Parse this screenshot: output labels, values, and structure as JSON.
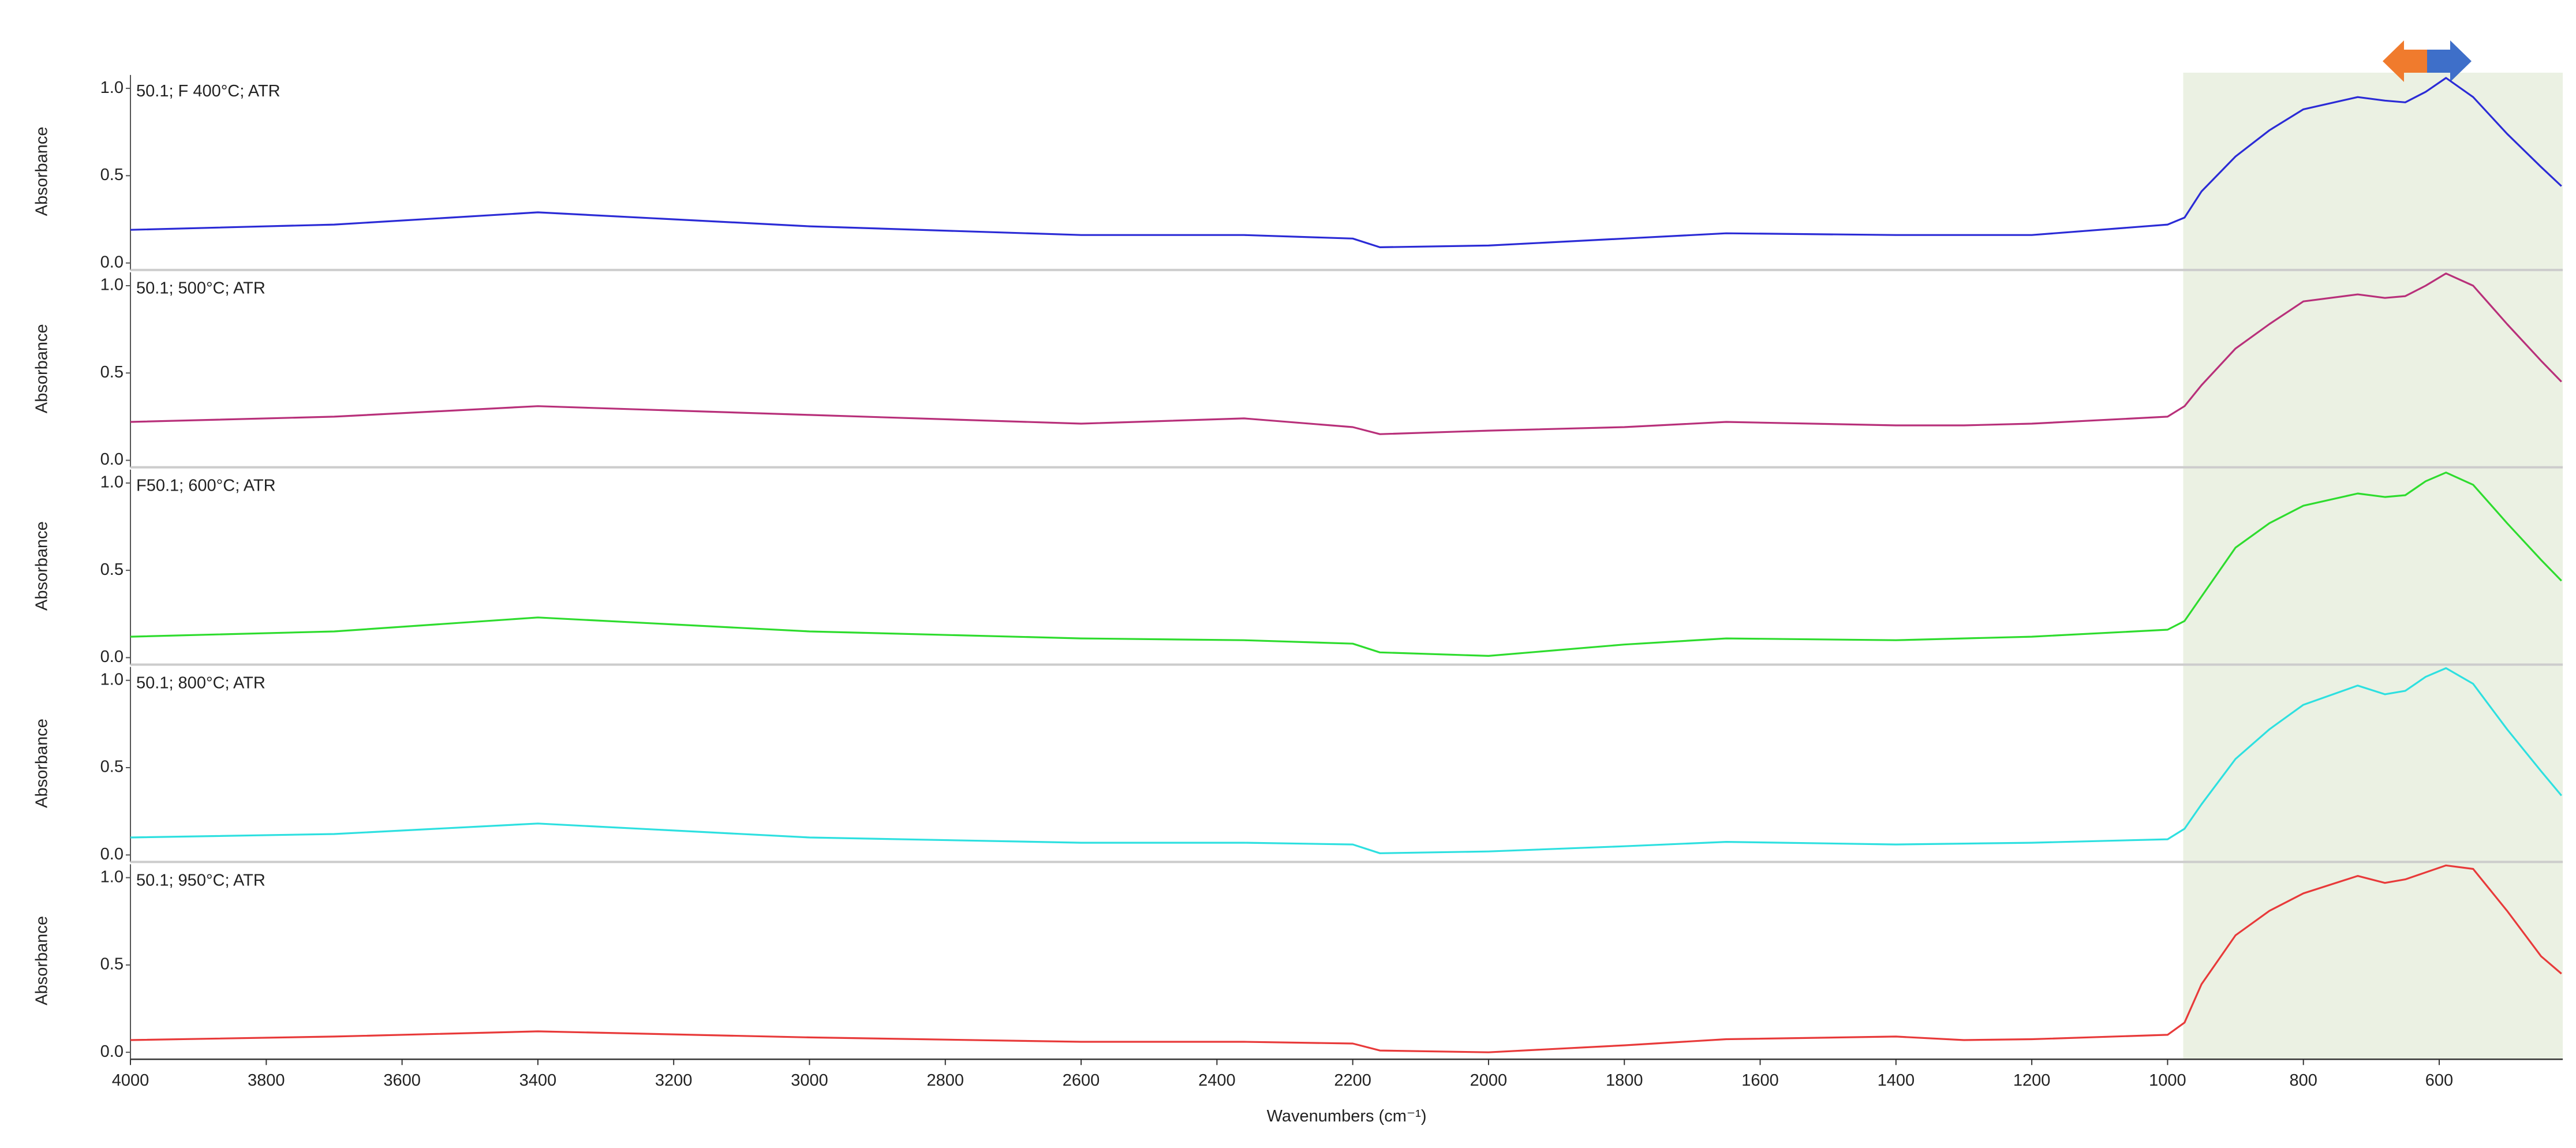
{
  "chart_data": [
    {
      "type": "line",
      "y_label": "Absorbance",
      "xlim": [
        4000,
        418
      ],
      "ylim": [
        -0.04,
        1.09
      ],
      "yticks": [
        {
          "value": 0,
          "label": "0.0"
        },
        {
          "value": 0.5,
          "label": "0.5"
        },
        {
          "value": 1,
          "label": "1.0"
        }
      ],
      "highlight_xrange": [
        977,
        418
      ],
      "highlight_color": "#ebf1e3",
      "x": [
        4000,
        3700,
        3400,
        3000,
        2600,
        2360,
        2200,
        2160,
        2000,
        1800,
        1650,
        1400,
        1300,
        1200,
        1000,
        975,
        950,
        900,
        850,
        800,
        720,
        680,
        650,
        620,
        590,
        550,
        500,
        450,
        420
      ],
      "series": [
        {
          "name": "50.1; F 400°C; ATR",
          "color": "#2b2bd6",
          "values": [
            0.19,
            0.22,
            0.29,
            0.21,
            0.16,
            0.16,
            0.14,
            0.09,
            0.1,
            0.14,
            0.17,
            0.16,
            0.16,
            0.16,
            0.22,
            0.26,
            0.41,
            0.61,
            0.76,
            0.88,
            0.95,
            0.93,
            0.92,
            0.98,
            1.06,
            0.95,
            0.74,
            0.55,
            0.44
          ]
        }
      ]
    },
    {
      "type": "line",
      "y_label": "Absorbance",
      "xlim": [
        4000,
        418
      ],
      "ylim": [
        -0.04,
        1.09
      ],
      "yticks": [
        {
          "value": 0,
          "label": "0.0"
        },
        {
          "value": 0.5,
          "label": "0.5"
        },
        {
          "value": 1,
          "label": "1.0"
        }
      ],
      "highlight_xrange": [
        977,
        418
      ],
      "highlight_color": "#ebf1e3",
      "x": [
        4000,
        3700,
        3400,
        3000,
        2600,
        2360,
        2200,
        2160,
        2000,
        1800,
        1650,
        1400,
        1300,
        1200,
        1000,
        975,
        950,
        900,
        850,
        800,
        720,
        680,
        650,
        620,
        590,
        550,
        500,
        450,
        420
      ],
      "series": [
        {
          "name": "50.1; 500°C; ATR",
          "color": "#b8307a",
          "values": [
            0.22,
            0.25,
            0.31,
            0.26,
            0.21,
            0.24,
            0.19,
            0.15,
            0.17,
            0.19,
            0.22,
            0.2,
            0.2,
            0.21,
            0.25,
            0.31,
            0.43,
            0.64,
            0.78,
            0.91,
            0.95,
            0.93,
            0.94,
            1.0,
            1.07,
            1.0,
            0.78,
            0.57,
            0.45
          ]
        }
      ]
    },
    {
      "type": "line",
      "y_label": "Absorbance",
      "xlim": [
        4000,
        418
      ],
      "ylim": [
        -0.04,
        1.09
      ],
      "yticks": [
        {
          "value": 0,
          "label": "0.0"
        },
        {
          "value": 0.5,
          "label": "0.5"
        },
        {
          "value": 1,
          "label": "1.0"
        }
      ],
      "highlight_xrange": [
        977,
        418
      ],
      "highlight_color": "#ebf1e3",
      "x": [
        4000,
        3700,
        3400,
        3000,
        2600,
        2360,
        2200,
        2160,
        2000,
        1800,
        1650,
        1400,
        1300,
        1200,
        1000,
        975,
        950,
        900,
        850,
        800,
        720,
        680,
        650,
        620,
        590,
        550,
        500,
        450,
        420
      ],
      "series": [
        {
          "name": "F50.1; 600°C; ATR",
          "color": "#2edc2e",
          "values": [
            0.12,
            0.15,
            0.23,
            0.15,
            0.11,
            0.1,
            0.08,
            0.03,
            0.01,
            0.075,
            0.11,
            0.1,
            0.11,
            0.12,
            0.16,
            0.21,
            0.35,
            0.63,
            0.77,
            0.87,
            0.94,
            0.92,
            0.93,
            1.01,
            1.06,
            0.99,
            0.77,
            0.56,
            0.44
          ]
        }
      ]
    },
    {
      "type": "line",
      "y_label": "Absorbance",
      "xlim": [
        4000,
        418
      ],
      "ylim": [
        -0.04,
        1.09
      ],
      "yticks": [
        {
          "value": 0,
          "label": "0.0"
        },
        {
          "value": 0.5,
          "label": "0.5"
        },
        {
          "value": 1,
          "label": "1.0"
        }
      ],
      "highlight_xrange": [
        977,
        418
      ],
      "highlight_color": "#ebf1e3",
      "x": [
        4000,
        3700,
        3400,
        3000,
        2600,
        2360,
        2200,
        2160,
        2000,
        1800,
        1650,
        1400,
        1300,
        1200,
        1000,
        975,
        950,
        900,
        850,
        800,
        720,
        680,
        650,
        620,
        590,
        550,
        500,
        450,
        420
      ],
      "series": [
        {
          "name": "50.1; 800°C; ATR",
          "color": "#2ee0e0",
          "values": [
            0.1,
            0.12,
            0.18,
            0.1,
            0.07,
            0.07,
            0.06,
            0.01,
            0.02,
            0.05,
            0.075,
            0.06,
            0.065,
            0.07,
            0.09,
            0.15,
            0.29,
            0.55,
            0.72,
            0.86,
            0.97,
            0.92,
            0.94,
            1.02,
            1.07,
            0.98,
            0.72,
            0.48,
            0.34
          ]
        }
      ]
    },
    {
      "type": "line",
      "y_label": "Absorbance",
      "xlim": [
        4000,
        418
      ],
      "ylim": [
        -0.04,
        1.09
      ],
      "yticks": [
        {
          "value": 0,
          "label": "0.0"
        },
        {
          "value": 0.5,
          "label": "0.5"
        },
        {
          "value": 1,
          "label": "1.0"
        }
      ],
      "highlight_xrange": [
        977,
        418
      ],
      "highlight_color": "#ebf1e3",
      "x": [
        4000,
        3700,
        3400,
        3000,
        2600,
        2360,
        2200,
        2160,
        2000,
        1800,
        1650,
        1400,
        1300,
        1200,
        1000,
        975,
        950,
        900,
        850,
        800,
        720,
        680,
        650,
        620,
        590,
        550,
        500,
        450,
        420
      ],
      "series": [
        {
          "name": "50.1; 950°C; ATR",
          "color": "#e83a3a",
          "values": [
            0.07,
            0.09,
            0.12,
            0.085,
            0.06,
            0.06,
            0.05,
            0.01,
            0.0,
            0.04,
            0.075,
            0.09,
            0.07,
            0.075,
            0.1,
            0.17,
            0.39,
            0.67,
            0.81,
            0.91,
            1.01,
            0.97,
            0.99,
            1.03,
            1.07,
            1.05,
            0.81,
            0.55,
            0.45
          ]
        }
      ],
      "x_label": "Wavenumbers (cm⁻¹)",
      "xticks": [
        4000,
        3800,
        3600,
        3400,
        3200,
        3000,
        2800,
        2600,
        2400,
        2200,
        2000,
        1800,
        1600,
        1400,
        1200,
        1000,
        800,
        600
      ]
    }
  ]
}
